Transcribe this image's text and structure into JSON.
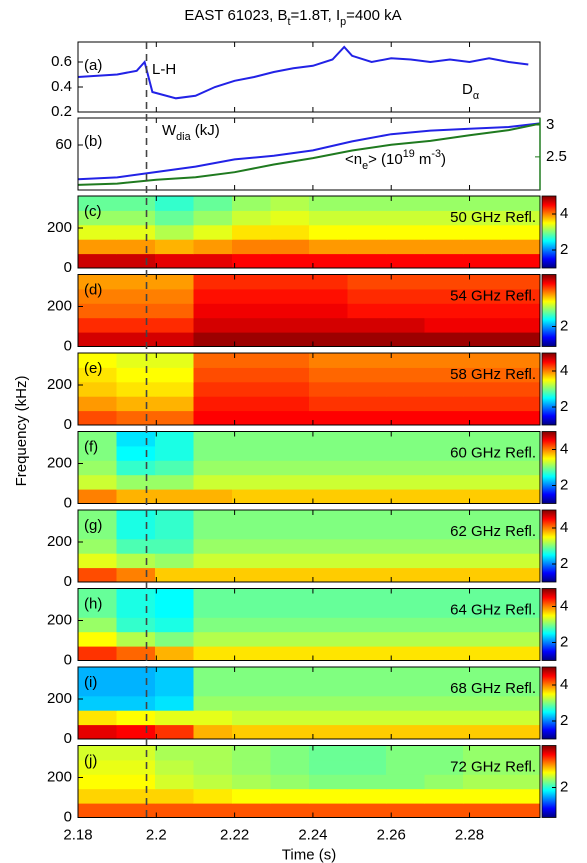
{
  "chart_data": [
    {
      "type": "line",
      "title": [
        "EAST 61023, B",
        {
          "sub": "t"
        },
        "=1.8T, I",
        {
          "sub": "p"
        },
        "=400 kA"
      ],
      "panel_label": "(a)",
      "annotation": "L-H",
      "vline": 2.1975,
      "x": [
        2.18,
        2.185,
        2.19,
        2.195,
        2.197,
        2.199,
        2.205,
        2.21,
        2.215,
        2.22,
        2.225,
        2.23,
        2.235,
        2.24,
        2.245,
        2.248,
        2.25,
        2.255,
        2.26,
        2.265,
        2.27,
        2.275,
        2.28,
        2.285,
        2.29,
        2.295
      ],
      "series": [
        {
          "name": [
            "D",
            {
              "sub": "α"
            }
          ],
          "color": "#2222e6",
          "values": [
            0.48,
            0.49,
            0.5,
            0.53,
            0.6,
            0.36,
            0.31,
            0.33,
            0.4,
            0.45,
            0.48,
            0.52,
            0.55,
            0.57,
            0.62,
            0.72,
            0.65,
            0.6,
            0.63,
            0.62,
            0.6,
            0.62,
            0.6,
            0.63,
            0.6,
            0.58
          ]
        }
      ],
      "xlim": [
        2.18,
        2.298
      ],
      "ylim": [
        0.2,
        0.76
      ],
      "yticks": [
        0.2,
        0.4,
        0.6
      ]
    },
    {
      "type": "line",
      "panel_label": "(b)",
      "x": [
        2.18,
        2.19,
        2.2,
        2.21,
        2.22,
        2.23,
        2.24,
        2.25,
        2.26,
        2.27,
        2.28,
        2.29,
        2.298
      ],
      "series": [
        {
          "name": [
            "W",
            {
              "sub": "dia"
            },
            " (kJ)"
          ],
          "color": "#2222e6",
          "values": [
            41,
            42,
            45,
            48,
            52,
            54,
            57,
            62,
            66,
            68,
            69,
            70,
            72
          ]
        },
        {
          "name": [
            "<n",
            {
              "sub": "e"
            },
            "> (10",
            {
              "sup": "19"
            },
            " m",
            {
              "sup": "-3"
            },
            ")"
          ],
          "color": "#1f7a1f",
          "axis": "y2",
          "values": [
            2.06,
            2.08,
            2.14,
            2.18,
            2.26,
            2.38,
            2.48,
            2.6,
            2.69,
            2.75,
            2.84,
            2.92,
            3.02
          ]
        }
      ],
      "xlim": [
        2.18,
        2.298
      ],
      "ylim": [
        35,
        75
      ],
      "yticks": [
        60
      ],
      "y2lim": [
        1.98,
        3.11
      ],
      "y2ticks": [
        2.5,
        3
      ]
    },
    {
      "type": "heatmap",
      "panel_label": "(c)",
      "label": "50 GHz Refl.",
      "colormap": "jet",
      "xlim": [
        2.18,
        2.298
      ],
      "ylim": [
        0,
        360
      ],
      "yticks": [
        0,
        200
      ],
      "clim": [
        1,
        5
      ],
      "cticks": [
        2,
        4
      ],
      "z": [
        [
          4.7,
          4.7,
          4.6,
          4.6,
          4.5,
          4.5,
          4.5,
          4.5,
          4.5,
          4.5,
          4.5,
          4.5
        ],
        [
          3.9,
          3.9,
          3.8,
          3.9,
          4.0,
          4.0,
          3.9,
          3.9,
          3.9,
          3.9,
          3.9,
          3.9
        ],
        [
          3.4,
          3.4,
          3.2,
          3.4,
          3.6,
          3.6,
          3.5,
          3.5,
          3.5,
          3.5,
          3.5,
          3.5
        ],
        [
          3.1,
          3.1,
          2.9,
          3.1,
          3.3,
          3.4,
          3.3,
          3.3,
          3.3,
          3.3,
          3.3,
          3.3
        ],
        [
          2.9,
          2.9,
          2.7,
          2.9,
          3.1,
          3.2,
          3.1,
          3.1,
          3.1,
          3.1,
          3.1,
          3.1
        ]
      ]
    },
    {
      "type": "heatmap",
      "panel_label": "(d)",
      "label": "54 GHz Refl.",
      "colormap": "jet",
      "xlim": [
        2.18,
        2.298
      ],
      "ylim": [
        0,
        360
      ],
      "yticks": [
        0,
        200
      ],
      "clim": [
        1,
        4.6
      ],
      "cticks": [
        2
      ],
      "z": [
        [
          4.3,
          4.3,
          4.3,
          4.5,
          4.5,
          4.5,
          4.5,
          4.5,
          4.5,
          4.5,
          4.5,
          4.5
        ],
        [
          4.0,
          4.0,
          4.0,
          4.3,
          4.3,
          4.3,
          4.3,
          4.3,
          4.3,
          4.2,
          4.2,
          4.2
        ],
        [
          3.8,
          3.8,
          3.8,
          4.2,
          4.2,
          4.2,
          4.2,
          4.1,
          4.1,
          4.1,
          4.1,
          4.1
        ],
        [
          3.7,
          3.7,
          3.7,
          4.1,
          4.1,
          4.1,
          4.1,
          4.0,
          4.0,
          4.0,
          4.0,
          4.0
        ],
        [
          3.6,
          3.6,
          3.6,
          4.0,
          4.0,
          4.0,
          4.0,
          3.9,
          3.9,
          3.9,
          3.9,
          3.9
        ]
      ]
    },
    {
      "type": "heatmap",
      "panel_label": "(e)",
      "label": "58 GHz Refl.",
      "colormap": "jet",
      "xlim": [
        2.18,
        2.298
      ],
      "ylim": [
        0,
        360
      ],
      "yticks": [
        0,
        200
      ],
      "clim": [
        1,
        5
      ],
      "cticks": [
        2,
        4
      ],
      "ylabel": "Frequency (kHz)",
      "z": [
        [
          4.2,
          4.1,
          4.1,
          4.5,
          4.5,
          4.5,
          4.5,
          4.5,
          4.5,
          4.5,
          4.5,
          4.5
        ],
        [
          3.9,
          3.8,
          3.8,
          4.4,
          4.4,
          4.4,
          4.3,
          4.3,
          4.3,
          4.3,
          4.3,
          4.3
        ],
        [
          3.7,
          3.6,
          3.6,
          4.3,
          4.3,
          4.3,
          4.2,
          4.2,
          4.2,
          4.2,
          4.2,
          4.2
        ],
        [
          3.6,
          3.5,
          3.5,
          4.2,
          4.2,
          4.2,
          4.1,
          4.1,
          4.1,
          4.1,
          4.1,
          4.1
        ],
        [
          3.5,
          3.4,
          3.4,
          4.1,
          4.1,
          4.1,
          4.0,
          4.0,
          4.0,
          4.0,
          4.0,
          4.0
        ]
      ]
    },
    {
      "type": "heatmap",
      "panel_label": "(f)",
      "label": "60 GHz Refl.",
      "colormap": "jet",
      "xlim": [
        2.18,
        2.298
      ],
      "ylim": [
        0,
        360
      ],
      "yticks": [
        0,
        200
      ],
      "clim": [
        1,
        5
      ],
      "cticks": [
        2,
        4
      ],
      "z": [
        [
          4.0,
          3.8,
          3.8,
          3.8,
          3.7,
          3.7,
          3.7,
          3.7,
          3.7,
          3.7,
          3.7,
          3.7
        ],
        [
          3.3,
          3.1,
          3.1,
          3.3,
          3.3,
          3.3,
          3.3,
          3.3,
          3.3,
          3.3,
          3.3,
          3.3
        ],
        [
          3.1,
          2.7,
          2.8,
          3.1,
          3.1,
          3.1,
          3.1,
          3.1,
          3.1,
          3.1,
          3.1,
          3.1
        ],
        [
          3.0,
          2.5,
          2.6,
          3.0,
          3.0,
          3.0,
          3.0,
          3.0,
          3.0,
          3.0,
          3.0,
          3.0
        ],
        [
          3.0,
          2.4,
          2.6,
          3.0,
          3.0,
          3.0,
          3.0,
          3.0,
          3.0,
          3.0,
          3.0,
          3.0
        ]
      ]
    },
    {
      "type": "heatmap",
      "panel_label": "(g)",
      "label": "62 GHz Refl.",
      "colormap": "jet",
      "xlim": [
        2.18,
        2.298
      ],
      "ylim": [
        0,
        360
      ],
      "yticks": [
        0,
        200
      ],
      "clim": [
        1,
        5
      ],
      "cticks": [
        2,
        4
      ],
      "z": [
        [
          4.2,
          4.0,
          3.7,
          3.7,
          3.7,
          3.7,
          3.7,
          3.7,
          3.7,
          3.7,
          3.7,
          3.7
        ],
        [
          3.4,
          3.2,
          3.1,
          3.3,
          3.3,
          3.3,
          3.3,
          3.3,
          3.3,
          3.3,
          3.3,
          3.3
        ],
        [
          3.1,
          2.8,
          2.8,
          3.1,
          3.1,
          3.1,
          3.1,
          3.1,
          3.1,
          3.1,
          3.1,
          3.1
        ],
        [
          3.0,
          2.6,
          2.7,
          3.0,
          3.0,
          3.0,
          3.0,
          3.0,
          3.0,
          3.0,
          3.0,
          3.0
        ],
        [
          3.0,
          2.6,
          2.7,
          3.0,
          3.0,
          3.0,
          3.0,
          3.0,
          3.0,
          3.0,
          3.0,
          3.0
        ]
      ]
    },
    {
      "type": "heatmap",
      "panel_label": "(h)",
      "label": "64 GHz Refl.",
      "colormap": "jet",
      "xlim": [
        2.18,
        2.298
      ],
      "ylim": [
        0,
        360
      ],
      "yticks": [
        0,
        200
      ],
      "clim": [
        1,
        5
      ],
      "cticks": [
        2,
        4
      ],
      "z": [
        [
          4.3,
          4.1,
          3.8,
          3.6,
          3.6,
          3.6,
          3.6,
          3.6,
          3.6,
          3.6,
          3.6,
          3.6
        ],
        [
          3.5,
          3.2,
          3.0,
          3.2,
          3.2,
          3.2,
          3.2,
          3.2,
          3.2,
          3.2,
          3.2,
          3.2
        ],
        [
          3.1,
          2.7,
          2.6,
          3.0,
          3.0,
          3.0,
          3.0,
          3.0,
          3.0,
          3.0,
          3.0,
          3.0
        ],
        [
          2.9,
          2.6,
          2.5,
          2.9,
          2.9,
          2.9,
          2.9,
          2.9,
          2.9,
          2.9,
          2.9,
          2.9
        ],
        [
          2.9,
          2.6,
          2.5,
          2.9,
          2.9,
          2.9,
          2.9,
          2.9,
          2.9,
          2.9,
          2.9,
          2.9
        ]
      ]
    },
    {
      "type": "heatmap",
      "panel_label": "(i)",
      "label": "68 GHz Refl.",
      "colormap": "jet",
      "xlim": [
        2.18,
        2.298
      ],
      "ylim": [
        0,
        360
      ],
      "yticks": [
        0,
        200
      ],
      "clim": [
        1,
        5
      ],
      "cticks": [
        2,
        4
      ],
      "z": [
        [
          4.6,
          4.5,
          4.3,
          3.8,
          3.7,
          3.7,
          3.7,
          3.7,
          3.7,
          3.7,
          3.7,
          3.7
        ],
        [
          3.6,
          3.5,
          3.4,
          3.4,
          3.3,
          3.3,
          3.3,
          3.3,
          3.3,
          3.3,
          3.3,
          3.3
        ],
        [
          2.3,
          2.3,
          2.4,
          3.1,
          3.1,
          3.1,
          3.1,
          3.1,
          3.1,
          3.1,
          3.1,
          3.1
        ],
        [
          2.2,
          2.2,
          2.3,
          3.0,
          3.0,
          3.0,
          3.0,
          3.0,
          3.0,
          3.0,
          3.0,
          3.0
        ],
        [
          2.2,
          2.2,
          2.3,
          3.0,
          3.0,
          3.0,
          3.0,
          3.0,
          3.0,
          3.0,
          3.0,
          3.0
        ]
      ]
    },
    {
      "type": "heatmap",
      "panel_label": "(j)",
      "label": "72 GHz Refl.",
      "colormap": "jet",
      "xlim": [
        2.18,
        2.298
      ],
      "ylim": [
        0,
        360
      ],
      "yticks": [
        0,
        200
      ],
      "clim": [
        1,
        3.4
      ],
      "cticks": [
        2
      ],
      "xticks": [
        2.18,
        2.2,
        2.22,
        2.24,
        2.26,
        2.28
      ],
      "xlabel": "Time (s)",
      "z": [
        [
          2.9,
          2.9,
          2.9,
          2.9,
          2.9,
          2.9,
          2.9,
          2.9,
          2.9,
          2.9,
          2.9,
          2.9
        ],
        [
          2.6,
          2.6,
          2.6,
          2.55,
          2.5,
          2.5,
          2.5,
          2.5,
          2.5,
          2.5,
          2.5,
          2.5
        ],
        [
          2.5,
          2.5,
          2.4,
          2.35,
          2.3,
          2.25,
          2.2,
          2.2,
          2.2,
          2.25,
          2.3,
          2.3
        ],
        [
          2.45,
          2.45,
          2.35,
          2.3,
          2.25,
          2.2,
          2.15,
          2.15,
          2.2,
          2.2,
          2.25,
          2.25
        ],
        [
          2.4,
          2.4,
          2.3,
          2.3,
          2.25,
          2.2,
          2.15,
          2.15,
          2.2,
          2.2,
          2.25,
          2.25
        ]
      ]
    }
  ]
}
